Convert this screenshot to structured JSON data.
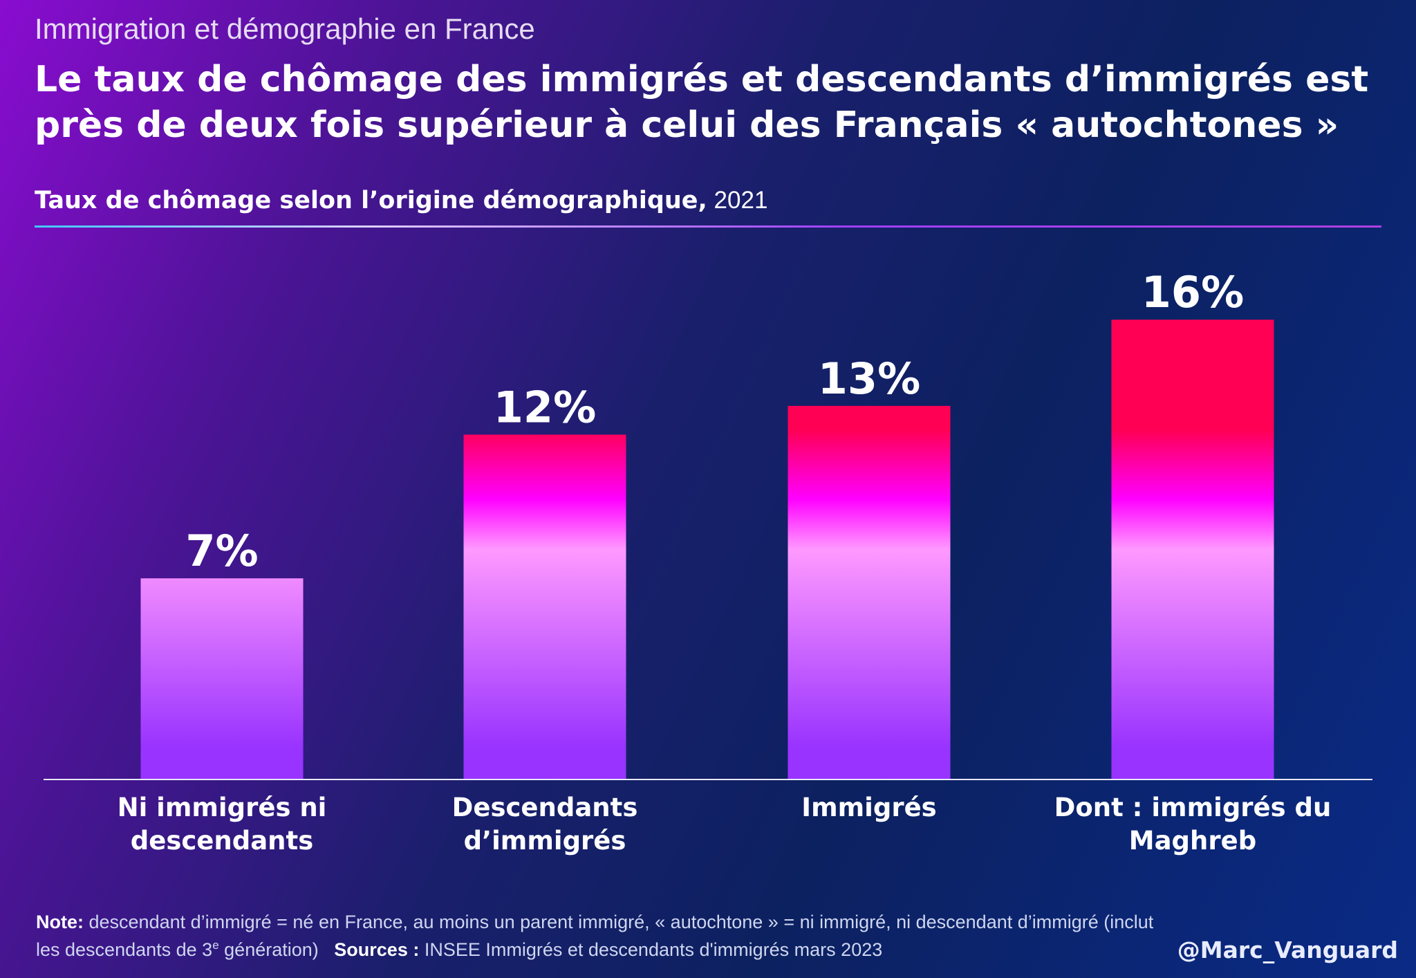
{
  "header": {
    "supertitle": "Immigration et démographie en France",
    "title": "Le taux de chômage des immigrés et descendants d’immigrés est près de deux fois supérieur à celui des Français « autochtones »",
    "subtitle_bold": "Taux de chômage selon l’origine démographique,",
    "subtitle_year": " 2021"
  },
  "chart_data": {
    "type": "bar",
    "categories": [
      [
        "Ni immigrés ni",
        "descendants"
      ],
      [
        "Descendants",
        "d’immigrés"
      ],
      [
        "Immigrés"
      ],
      [
        "Dont : immigrés du",
        "Maghreb"
      ]
    ],
    "values": [
      7,
      12,
      13,
      16
    ],
    "data_labels": [
      "7%",
      "12%",
      "13%",
      "16%"
    ],
    "unit": "%",
    "ylim": [
      0,
      16
    ],
    "grid": false,
    "colors": {
      "top": "#ff0055",
      "mid": "#ff00ff",
      "light": "#ff99ff",
      "bottom": "#9933ff"
    }
  },
  "footer": {
    "note_label": "Note:",
    "note_text_1": " descendant d’immigré = né en France, au moins un parent immigré, « autochtone » = ni immigré, ni descendant d’immigré (inclut les descendants de 3",
    "note_sup": "e",
    "note_text_2": " génération)",
    "sources_label": "Sources :",
    "sources_text": " INSEE Immigrés et descendants d'immigrés mars 2023",
    "handle": "@Marc_Vanguard"
  }
}
